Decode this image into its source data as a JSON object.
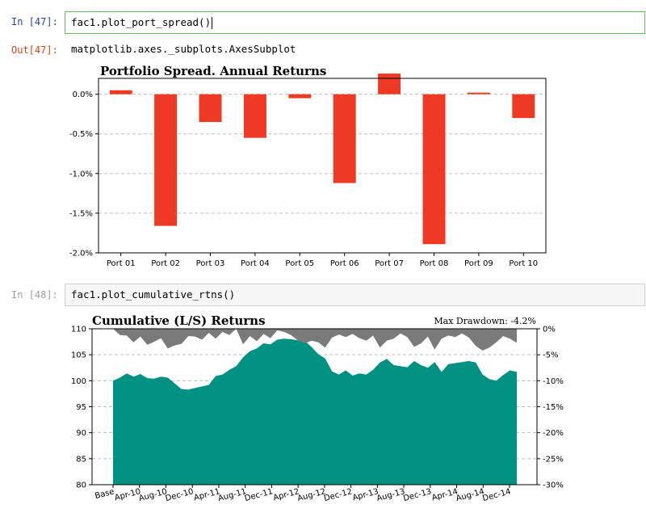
{
  "cells": [
    {
      "prompt": "In [47]:",
      "code": "fac1.plot_port_spread()"
    },
    {
      "out_prompt": "Out[47]:",
      "output": "matplotlib.axes._subplots.AxesSubplot"
    },
    {
      "prompt": "In [48]:",
      "code": "fac1.plot_cumulative_rtns()"
    }
  ],
  "colors": {
    "bar": "#ee3a24",
    "area": "#009183",
    "drawdown": "#7a7a7a"
  },
  "chart_data": [
    {
      "type": "bar",
      "title": "Portfolio Spread. Annual Returns",
      "categories": [
        "Port 01",
        "Port 02",
        "Port 03",
        "Port 04",
        "Port 05",
        "Port 06",
        "Port 07",
        "Port 08",
        "Port 09",
        "Port 10"
      ],
      "values": [
        0.05,
        -1.66,
        -0.35,
        -0.55,
        -0.05,
        -1.12,
        0.26,
        -1.89,
        0.02,
        -0.3
      ],
      "ylim": [
        -2.0,
        0.2
      ],
      "yticks": [
        0.0,
        -0.5,
        -1.0,
        -1.5,
        -2.0
      ],
      "ytick_labels": [
        "0.0%",
        "-0.5%",
        "-1.0%",
        "-1.5%",
        "-2.0%"
      ],
      "grid": true
    },
    {
      "type": "area",
      "title": "Cumulative (L/S) Returns",
      "annotation": "Max Drawdown: -4.2%",
      "ylim": [
        80,
        110
      ],
      "yticks": [
        110,
        105,
        100,
        95,
        90,
        85,
        80
      ],
      "ytick_labels": [
        "110",
        "105",
        "100",
        "95",
        "90",
        "85",
        "80"
      ],
      "y2lim": [
        -30,
        0
      ],
      "y2ticks": [
        0,
        -5,
        -10,
        -15,
        -20,
        -25,
        -30
      ],
      "y2tick_labels": [
        "0%",
        "-5%",
        "-10%",
        "-15%",
        "-20%",
        "-25%",
        "-30%"
      ],
      "xtick_labels": [
        "Base",
        "Apr-10",
        "Aug-10",
        "Dec-10",
        "Apr-11",
        "Aug-11",
        "Dec-11",
        "Apr-12",
        "Aug-12",
        "Dec-12",
        "Apr-13",
        "Aug-13",
        "Dec-13",
        "Apr-14",
        "Aug-14",
        "Dec-14"
      ],
      "series": [
        {
          "name": "Cumulative Return",
          "values": [
            100,
            100.6,
            101.4,
            100.8,
            101.3,
            100.5,
            100.4,
            100.8,
            100.6,
            99.5,
            98.4,
            98.3,
            98.6,
            98.9,
            99.2,
            100.9,
            101.2,
            102.1,
            102.8,
            104.5,
            105.7,
            106.2,
            107.2,
            107.0,
            107.9,
            108.1,
            108.0,
            107.8,
            107.7,
            106.5,
            105.1,
            104.3,
            101.8,
            101.2,
            102.0,
            101.0,
            101.4,
            101.2,
            102.1,
            103.5,
            104.2,
            103.0,
            102.8,
            102.6,
            103.8,
            103.0,
            102.5,
            103.6,
            101.7,
            103.2,
            103.4,
            103.6,
            103.8,
            103.5,
            101.2,
            100.3,
            100.0,
            101.1,
            102.0,
            101.7
          ]
        },
        {
          "name": "Drawdown",
          "values": [
            0,
            -1.2,
            -1.3,
            -2.6,
            -1.5,
            -3.1,
            -2.5,
            -1.8,
            -3.8,
            -3.2,
            -2.9,
            -1.4,
            -1.5,
            -2.1,
            -0.8,
            -1.9,
            -0.6,
            -1.2,
            0,
            -3.0,
            -1.4,
            -2.4,
            -1.0,
            -1.8,
            -0.3,
            -0.6,
            -1.2,
            -2.2,
            -2.8,
            -2.3,
            -2.6,
            -3.6,
            -1.7,
            -1.1,
            -1.6,
            -1.0,
            -1.8,
            -2.3,
            -1.3,
            -3.6,
            -2.3,
            -1.9,
            -0.9,
            -1.6,
            -3.5,
            -2.8,
            -1.5,
            -4.0,
            -1.9,
            -1.3,
            -1.6,
            -0.9,
            -1.7,
            -3.3,
            -4.2,
            -3.6,
            -2.6,
            -1.4,
            -1.9,
            -2.7
          ]
        }
      ]
    }
  ]
}
